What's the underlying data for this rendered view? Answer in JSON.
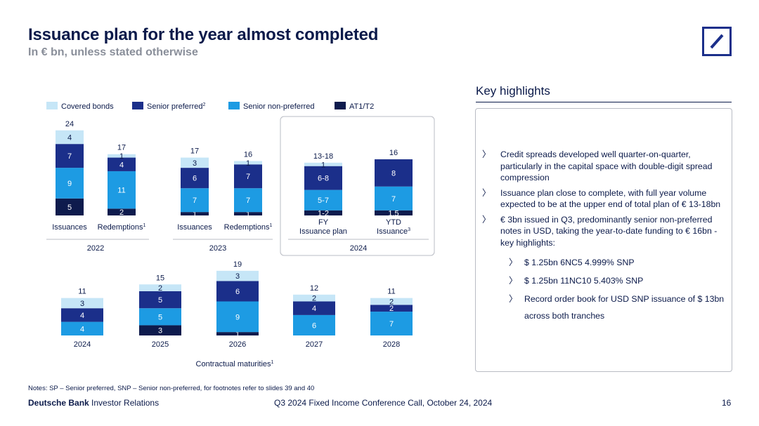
{
  "header": {
    "title": "Issuance plan for the year almost completed",
    "subtitle": "In € bn, unless stated otherwise"
  },
  "colors": {
    "covered": "#c6e6f7",
    "senior_preferred": "#1b2f8a",
    "senior_non_preferred": "#1d9be3",
    "at1_t2": "#0e1b4d",
    "text": "#0b1a4a",
    "frame": "#b9bcc4"
  },
  "chart_data": [
    {
      "type": "bar",
      "stacked": true,
      "title": "2022",
      "categories": [
        "Issuances",
        "Redemptions"
      ],
      "category_superscripts": [
        "",
        "1"
      ],
      "series": [
        {
          "name": "AT1/T2",
          "values": [
            5,
            2
          ]
        },
        {
          "name": "Senior non-preferred",
          "values": [
            9,
            11
          ]
        },
        {
          "name": "Senior preferred",
          "values": [
            7,
            4
          ]
        },
        {
          "name": "Covered bonds",
          "values": [
            4,
            1
          ]
        }
      ],
      "segment_labels": [
        [
          "5",
          "9",
          "7",
          "4"
        ],
        [
          "2",
          "11",
          "4",
          "1"
        ]
      ],
      "totals": [
        "24",
        "17"
      ]
    },
    {
      "type": "bar",
      "stacked": true,
      "title": "2023",
      "categories": [
        "Issuances",
        "Redemptions"
      ],
      "category_superscripts": [
        "",
        "1"
      ],
      "series": [
        {
          "name": "AT1/T2",
          "values": [
            1,
            1
          ]
        },
        {
          "name": "Senior non-preferred",
          "values": [
            7,
            7
          ]
        },
        {
          "name": "Senior preferred",
          "values": [
            6,
            7
          ]
        },
        {
          "name": "Covered bonds",
          "values": [
            3,
            1
          ]
        }
      ],
      "segment_labels": [
        [
          "1",
          "7",
          "6",
          "3"
        ],
        [
          "1",
          "7",
          "7",
          "1"
        ]
      ],
      "totals": [
        "17",
        "16"
      ]
    },
    {
      "type": "bar",
      "stacked": true,
      "title": "2024",
      "categories": [
        "FY Issuance plan",
        "YTD Issuance"
      ],
      "category_lines": [
        [
          "FY",
          "Issuance plan"
        ],
        [
          "YTD",
          "Issuance"
        ]
      ],
      "category_superscripts": [
        "",
        "3"
      ],
      "series": [
        {
          "name": "AT1/T2",
          "values": [
            1.5,
            1.5
          ]
        },
        {
          "name": "Senior non-preferred",
          "values": [
            6,
            7
          ]
        },
        {
          "name": "Senior preferred",
          "values": [
            7,
            8
          ]
        },
        {
          "name": "Covered bonds",
          "values": [
            1,
            0
          ]
        }
      ],
      "segment_labels": [
        [
          "1-2",
          "5-7",
          "6-8",
          "1"
        ],
        [
          "1.5",
          "7",
          "8",
          ""
        ]
      ],
      "totals": [
        "13-18",
        "16"
      ]
    },
    {
      "type": "bar",
      "stacked": true,
      "title": "Contractual maturities",
      "title_superscript": "1",
      "categories": [
        "2024",
        "2025",
        "2026",
        "2027",
        "2028"
      ],
      "series": [
        {
          "name": "AT1/T2",
          "values": [
            0,
            3,
            1,
            0,
            0
          ]
        },
        {
          "name": "Senior non-preferred",
          "values": [
            4,
            5,
            9,
            6,
            7
          ]
        },
        {
          "name": "Senior preferred",
          "values": [
            4,
            5,
            6,
            4,
            2
          ]
        },
        {
          "name": "Covered bonds",
          "values": [
            3,
            2,
            3,
            2,
            2
          ]
        }
      ],
      "segment_labels": [
        [
          "",
          "4",
          "4",
          "3"
        ],
        [
          "3",
          "5",
          "5",
          "2"
        ],
        [
          "1",
          "9",
          "6",
          "3"
        ],
        [
          "",
          "6",
          "4",
          "2"
        ],
        [
          "",
          "7",
          "2",
          "2"
        ]
      ],
      "totals": [
        "11",
        "15",
        "19",
        "12",
        "11"
      ]
    }
  ],
  "legend": [
    {
      "label": "Covered bonds",
      "sup": "",
      "color_key": "covered"
    },
    {
      "label": "Senior preferred",
      "sup": "2",
      "color_key": "senior_preferred"
    },
    {
      "label": "Senior non-preferred",
      "sup": "",
      "color_key": "senior_non_preferred"
    },
    {
      "label": "AT1/T2",
      "sup": "",
      "color_key": "at1_t2"
    }
  ],
  "key_highlights": {
    "title": "Key highlights",
    "bullets": [
      "Credit spreads developed well quarter-on-quarter, particularly in the capital space with double-digit spread compression",
      "Issuance plan close to complete, with full year volume expected to be at the upper end of total plan of € 13-18bn",
      "€ 3bn issued in Q3, predominantly senior non-preferred notes in USD, taking the year-to-date funding to € 16bn - key highlights:"
    ],
    "sub_bullets": [
      "$ 1.25bn 6NC5 4.999% SNP",
      "$ 1.25bn 11NC10 5.403% SNP",
      "Record order book for USD SNP issuance of $ 13bn across both tranches"
    ],
    "arrow_glyph": "〉"
  },
  "footer": {
    "notes": "Notes: SP – Senior preferred, SNP – Senior non-preferred, for footnotes refer to slides 39 and 40",
    "brand_bold": "Deutsche Bank",
    "brand_rest": " Investor Relations",
    "event": "Q3 2024 Fixed Income Conference Call, October 24, 2024",
    "page_number": "16"
  }
}
